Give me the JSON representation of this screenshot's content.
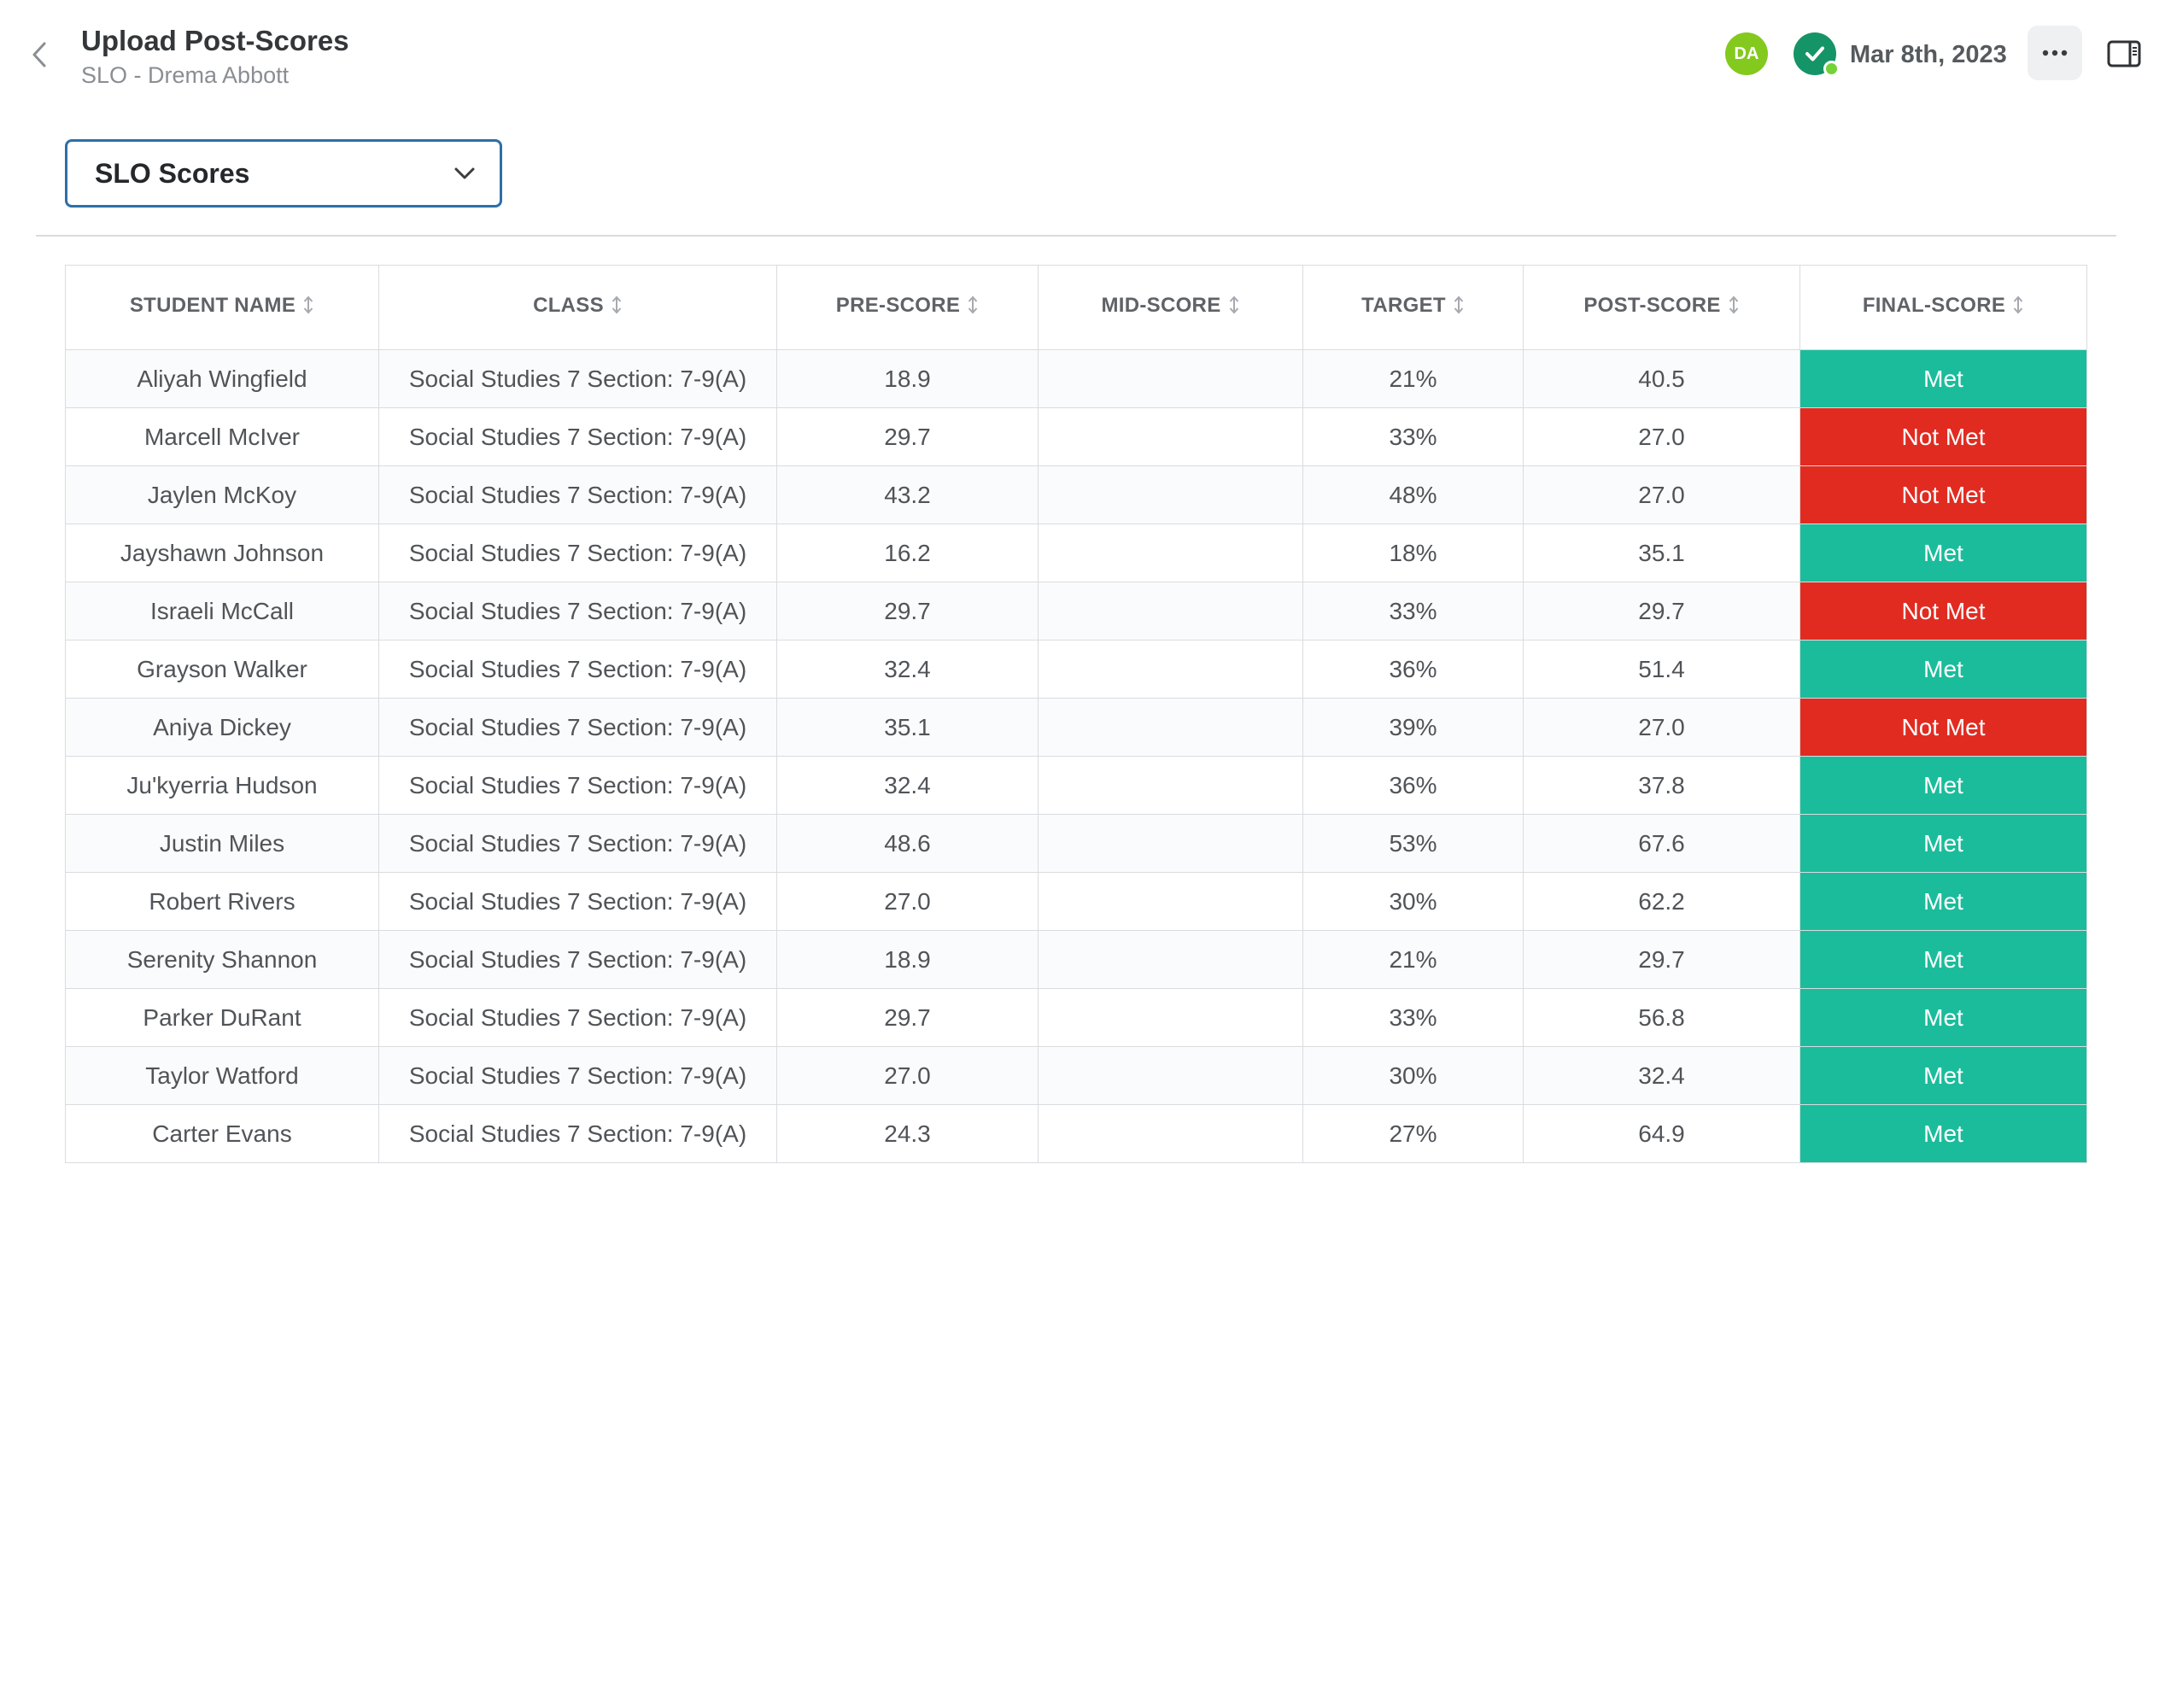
{
  "header": {
    "title": "Upload Post-Scores",
    "subtitle": "SLO - Drema Abbott",
    "avatar_initials": "DA",
    "date": "Mar 8th, 2023"
  },
  "dropdown": {
    "value": "SLO Scores"
  },
  "table": {
    "columns": [
      "STUDENT NAME",
      "CLASS",
      "PRE-SCORE",
      "MID-SCORE",
      "TARGET",
      "POST-SCORE",
      "FINAL-SCORE"
    ],
    "rows": [
      {
        "name": "Aliyah Wingfield",
        "class": "Social Studies 7 Section: 7-9(A)",
        "pre": "18.9",
        "mid": "",
        "target": "21%",
        "post": "40.5",
        "final": "Met"
      },
      {
        "name": "Marcell McIver",
        "class": "Social Studies 7 Section: 7-9(A)",
        "pre": "29.7",
        "mid": "",
        "target": "33%",
        "post": "27.0",
        "final": "Not Met"
      },
      {
        "name": "Jaylen McKoy",
        "class": "Social Studies 7 Section: 7-9(A)",
        "pre": "43.2",
        "mid": "",
        "target": "48%",
        "post": "27.0",
        "final": "Not Met"
      },
      {
        "name": "Jayshawn Johnson",
        "class": "Social Studies 7 Section: 7-9(A)",
        "pre": "16.2",
        "mid": "",
        "target": "18%",
        "post": "35.1",
        "final": "Met"
      },
      {
        "name": "Israeli McCall",
        "class": "Social Studies 7 Section: 7-9(A)",
        "pre": "29.7",
        "mid": "",
        "target": "33%",
        "post": "29.7",
        "final": "Not Met"
      },
      {
        "name": "Grayson Walker",
        "class": "Social Studies 7 Section: 7-9(A)",
        "pre": "32.4",
        "mid": "",
        "target": "36%",
        "post": "51.4",
        "final": "Met"
      },
      {
        "name": "Aniya Dickey",
        "class": "Social Studies 7 Section: 7-9(A)",
        "pre": "35.1",
        "mid": "",
        "target": "39%",
        "post": "27.0",
        "final": "Not Met"
      },
      {
        "name": "Ju'kyerria Hudson",
        "class": "Social Studies 7 Section: 7-9(A)",
        "pre": "32.4",
        "mid": "",
        "target": "36%",
        "post": "37.8",
        "final": "Met"
      },
      {
        "name": "Justin Miles",
        "class": "Social Studies 7 Section: 7-9(A)",
        "pre": "48.6",
        "mid": "",
        "target": "53%",
        "post": "67.6",
        "final": "Met"
      },
      {
        "name": "Robert Rivers",
        "class": "Social Studies 7 Section: 7-9(A)",
        "pre": "27.0",
        "mid": "",
        "target": "30%",
        "post": "62.2",
        "final": "Met"
      },
      {
        "name": "Serenity Shannon",
        "class": "Social Studies 7 Section: 7-9(A)",
        "pre": "18.9",
        "mid": "",
        "target": "21%",
        "post": "29.7",
        "final": "Met"
      },
      {
        "name": "Parker DuRant",
        "class": "Social Studies 7 Section: 7-9(A)",
        "pre": "29.7",
        "mid": "",
        "target": "33%",
        "post": "56.8",
        "final": "Met"
      },
      {
        "name": "Taylor Watford",
        "class": "Social Studies 7 Section: 7-9(A)",
        "pre": "27.0",
        "mid": "",
        "target": "30%",
        "post": "32.4",
        "final": "Met"
      },
      {
        "name": "Carter Evans",
        "class": "Social Studies 7 Section: 7-9(A)",
        "pre": "24.3",
        "mid": "",
        "target": "27%",
        "post": "64.9",
        "final": "Met"
      }
    ]
  },
  "colors": {
    "met": "#1bbc9b",
    "not_met": "#e12b21",
    "avatar": "#84c91e",
    "status": "#159468",
    "dropdown_border": "#2d6fa8"
  },
  "icons": {
    "back": "chevron-left-icon",
    "status": "check-circle-icon",
    "more": "ellipsis-icon",
    "panel": "side-panel-icon",
    "dropdown": "chevron-down-icon",
    "sort": "sort-icon"
  }
}
